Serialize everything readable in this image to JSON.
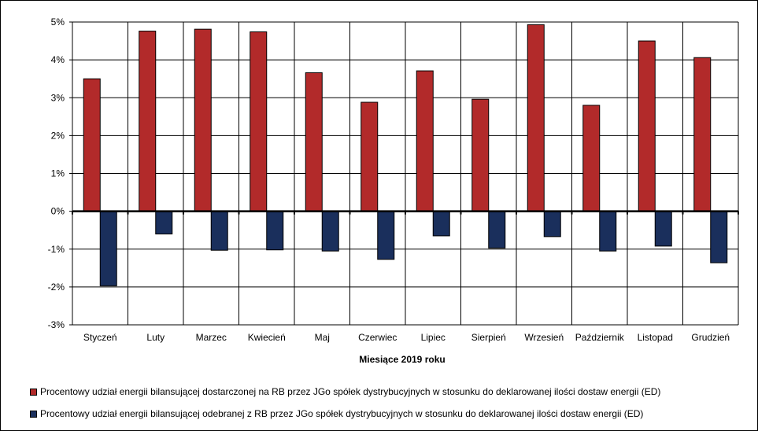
{
  "chart_data": {
    "type": "bar",
    "title": "",
    "xlabel": "Miesiące 2019  roku",
    "ylabel": "",
    "ylim": [
      -3,
      5
    ],
    "yticks": [
      5,
      4,
      3,
      2,
      1,
      0,
      -1,
      -2,
      -3
    ],
    "ytick_labels": [
      "5%",
      "4%",
      "3%",
      "2%",
      "1%",
      "0%",
      "-1%",
      "-2%",
      "-3%"
    ],
    "grid": true,
    "legend_position": "bottom",
    "categories": [
      "Styczeń",
      "Luty",
      "Marzec",
      "Kwiecień",
      "Maj",
      "Czerwiec",
      "Lipiec",
      "Sierpień",
      "Wrzesień",
      "Październik",
      "Listopad",
      "Grudzień"
    ],
    "series": [
      {
        "name": "Procentowy udział energii bilansującej dostarczonej na RB przez JGo spółek dystrybucyjnych w stosunku do deklarowanej ilości dostaw energii (ED)",
        "color": "#b22a2a",
        "values": [
          3.5,
          4.76,
          4.81,
          4.74,
          3.66,
          2.88,
          3.71,
          2.96,
          4.93,
          2.8,
          4.5,
          4.06
        ]
      },
      {
        "name": "Procentowy udział energii bilansującej odebranej z RB przez JGo spółek dystrybucyjnych w stosunku do deklarowanej ilości dostaw energii (ED)",
        "color": "#1a2f5c",
        "values": [
          -1.97,
          -0.6,
          -1.03,
          -1.02,
          -1.05,
          -1.27,
          -0.65,
          -0.97,
          -0.67,
          -1.05,
          -0.92,
          -1.36
        ]
      }
    ]
  }
}
